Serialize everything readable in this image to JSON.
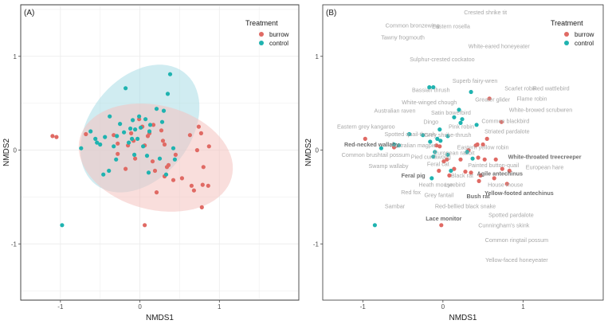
{
  "chart_data": [
    {
      "type": "scatter",
      "panel_tag": "(A)",
      "title": "",
      "xlabel": "NMDS1",
      "ylabel": "NMDS2",
      "xlim": [
        -1.5,
        2.0
      ],
      "ylim": [
        -1.6,
        1.55
      ],
      "xticks": [
        -1,
        0,
        1
      ],
      "yticks": [
        -1,
        0,
        1
      ],
      "xtick_labels": [
        "-1",
        "0",
        "1"
      ],
      "ytick_labels": [
        "-1",
        "0",
        "1"
      ],
      "grid": true,
      "legend": {
        "title": "Treatment",
        "position": "top-right",
        "entries": [
          "burrow",
          "control"
        ]
      },
      "colors": {
        "burrow": "#e06a64",
        "control": "#1fb3b0",
        "ellipse_burrow": "#f4c2c0",
        "ellipse_control": "#a9dde6",
        "grid": "#ebebeb",
        "frame": "#333333"
      },
      "ellipses": [
        {
          "series": "control",
          "center": [
            0.0,
            0.23
          ],
          "semi_major": 0.83,
          "semi_minor": 0.58,
          "angle_deg": 37
        },
        {
          "series": "burrow",
          "center": [
            0.2,
            -0.08
          ],
          "semi_major": 0.98,
          "semi_minor": 0.56,
          "angle_deg": -10
        }
      ],
      "series": [
        {
          "name": "burrow",
          "points": [
            [
              -1.1,
              0.15
            ],
            [
              -1.05,
              0.14
            ],
            [
              -0.68,
              0.17
            ],
            [
              -0.33,
              0.16
            ],
            [
              -0.28,
              0.07
            ],
            [
              -0.28,
              -0.04
            ],
            [
              -0.18,
              -0.2
            ],
            [
              -0.15,
              0.05
            ],
            [
              -0.11,
              0.18
            ],
            [
              -0.08,
              0.1
            ],
            [
              -0.06,
              -0.09
            ],
            [
              -0.01,
              0.33
            ],
            [
              0.03,
              0.25
            ],
            [
              0.06,
              0.05
            ],
            [
              0.1,
              0.15
            ],
            [
              0.12,
              0.18
            ],
            [
              0.16,
              -0.12
            ],
            [
              0.17,
              0.27
            ],
            [
              0.19,
              -0.22
            ],
            [
              0.21,
              -0.45
            ],
            [
              0.27,
              0.21
            ],
            [
              0.29,
              0.1
            ],
            [
              0.31,
              0.06
            ],
            [
              0.31,
              -0.28
            ],
            [
              0.34,
              -0.18
            ],
            [
              0.36,
              -0.16
            ],
            [
              0.42,
              -0.32
            ],
            [
              0.45,
              -0.05
            ],
            [
              0.53,
              -0.3
            ],
            [
              0.63,
              0.16
            ],
            [
              0.65,
              -0.38
            ],
            [
              0.68,
              -0.43
            ],
            [
              0.72,
              0.0
            ],
            [
              0.74,
              0.25
            ],
            [
              0.77,
              0.18
            ],
            [
              0.78,
              -0.61
            ],
            [
              0.79,
              -0.37
            ],
            [
              0.8,
              -0.18
            ],
            [
              0.87,
              0.04
            ],
            [
              0.86,
              -0.38
            ],
            [
              0.06,
              -0.8
            ]
          ]
        },
        {
          "name": "control",
          "points": [
            [
              -0.98,
              -0.8
            ],
            [
              -0.74,
              0.02
            ],
            [
              -0.62,
              0.2
            ],
            [
              -0.56,
              0.12
            ],
            [
              -0.54,
              0.08
            ],
            [
              -0.5,
              0.06
            ],
            [
              -0.46,
              -0.26
            ],
            [
              -0.44,
              0.14
            ],
            [
              -0.39,
              -0.22
            ],
            [
              -0.33,
              0.04
            ],
            [
              -0.3,
              -0.1
            ],
            [
              -0.29,
              0.15
            ],
            [
              -0.25,
              0.28
            ],
            [
              -0.18,
              0.66
            ],
            [
              -0.14,
              0.08
            ],
            [
              -0.12,
              0.23
            ],
            [
              -0.1,
              0.12
            ],
            [
              -0.09,
              0.32
            ],
            [
              -0.07,
              -0.05
            ],
            [
              -0.06,
              0.22
            ],
            [
              -0.03,
              0.12
            ],
            [
              -0.01,
              0.36
            ],
            [
              0.01,
              0.24
            ],
            [
              0.04,
              0.04
            ],
            [
              0.07,
              0.33
            ],
            [
              0.09,
              -0.06
            ],
            [
              0.11,
              -0.24
            ],
            [
              0.13,
              0.27
            ],
            [
              0.21,
              0.44
            ],
            [
              0.25,
              -0.09
            ],
            [
              0.28,
              0.3
            ],
            [
              0.3,
              0.42
            ],
            [
              0.33,
              -0.26
            ],
            [
              0.35,
              0.6
            ],
            [
              0.38,
              0.81
            ],
            [
              0.42,
              0.02
            ],
            [
              0.44,
              -0.1
            ],
            [
              -0.38,
              0.36
            ],
            [
              0.12,
              0.2
            ],
            [
              -0.2,
              0.19
            ]
          ]
        }
      ]
    },
    {
      "type": "scatter",
      "panel_tag": "(B)",
      "title": "",
      "xlabel": "NMDS1",
      "ylabel": "NMDS2",
      "xlim": [
        -1.5,
        2.0
      ],
      "ylim": [
        -1.6,
        1.55
      ],
      "xticks": [
        -1,
        0,
        1
      ],
      "yticks": [
        -1,
        0,
        1
      ],
      "xtick_labels": [
        "-1",
        "0",
        "1"
      ],
      "ytick_labels": [
        "-1",
        "0",
        "1"
      ],
      "grid": false,
      "legend": {
        "title": "Treatment",
        "position": "top-right",
        "entries": [
          "burrow",
          "control"
        ]
      },
      "colors": {
        "burrow": "#e06a64",
        "control": "#1fb3b0",
        "label": "#a8a8a8",
        "label_bold": "#6e6e6e",
        "leader": "#bdbdbd",
        "frame": "#333333"
      },
      "series": [
        {
          "name": "burrow",
          "points": [
            [
              -0.97,
              0.12
            ],
            [
              -0.61,
              0.03
            ],
            [
              -0.08,
              0.05
            ],
            [
              -0.04,
              0.04
            ],
            [
              0.01,
              -0.12
            ],
            [
              -0.05,
              -0.22
            ],
            [
              0.05,
              -0.1
            ],
            [
              0.08,
              -0.27
            ],
            [
              0.14,
              -0.2
            ],
            [
              0.22,
              -0.1
            ],
            [
              0.28,
              -0.23
            ],
            [
              0.32,
              0.0
            ],
            [
              0.35,
              -0.24
            ],
            [
              0.41,
              0.05
            ],
            [
              0.43,
              0.06
            ],
            [
              0.44,
              -0.08
            ],
            [
              0.45,
              -0.33
            ],
            [
              0.47,
              -0.27
            ],
            [
              0.5,
              0.06
            ],
            [
              0.52,
              -0.1
            ],
            [
              0.58,
              0.55
            ],
            [
              0.64,
              -0.3
            ],
            [
              0.66,
              -0.1
            ],
            [
              0.73,
              0.3
            ],
            [
              0.74,
              -0.2
            ],
            [
              0.8,
              -0.36
            ],
            [
              0.83,
              -0.22
            ],
            [
              0.55,
              0.12
            ],
            [
              -0.02,
              -0.8
            ]
          ]
        },
        {
          "name": "control",
          "points": [
            [
              -0.85,
              -0.8
            ],
            [
              -0.77,
              0.02
            ],
            [
              -0.61,
              0.06
            ],
            [
              -0.55,
              0.05
            ],
            [
              -0.42,
              0.17
            ],
            [
              -0.25,
              0.16
            ],
            [
              -0.16,
              0.09
            ],
            [
              -0.17,
              0.67
            ],
            [
              -0.12,
              0.67
            ],
            [
              -0.12,
              -0.07
            ],
            [
              -0.1,
              -0.02
            ],
            [
              -0.04,
              0.22
            ],
            [
              -0.03,
              0.1
            ],
            [
              0.06,
              0.15
            ],
            [
              0.06,
              -0.05
            ],
            [
              0.1,
              -0.22
            ],
            [
              0.2,
              0.43
            ],
            [
              0.22,
              0.29
            ],
            [
              0.24,
              0.33
            ],
            [
              0.3,
              -0.02
            ],
            [
              0.35,
              0.62
            ],
            [
              0.37,
              -0.09
            ],
            [
              0.42,
              0.27
            ],
            [
              -0.07,
              0.12
            ],
            [
              -0.14,
              -0.3
            ],
            [
              0.14,
              0.35
            ]
          ]
        }
      ],
      "species_labels": [
        {
          "text": "Crested shrike tit",
          "at": [
            0.53,
            1.47
          ],
          "bold": false
        },
        {
          "text": "Common bronzewing",
          "at": [
            -0.38,
            1.33
          ],
          "bold": false
        },
        {
          "text": "Eastern rosella",
          "at": [
            0.1,
            1.32
          ],
          "bold": false
        },
        {
          "text": "Tawny frogmouth",
          "at": [
            -0.5,
            1.2
          ],
          "bold": false
        },
        {
          "text": "White-eared honeyeater",
          "at": [
            0.7,
            1.11
          ],
          "bold": false
        },
        {
          "text": "Sulphur-crested cockatoo",
          "at": [
            -0.01,
            0.97
          ],
          "bold": false
        },
        {
          "text": "Superb fairy-wren",
          "at": [
            0.4,
            0.74
          ],
          "bold": false
        },
        {
          "text": "Bassian thrush",
          "at": [
            -0.15,
            0.64
          ],
          "bold": false
        },
        {
          "text": "Scarlet robin",
          "at": [
            0.97,
            0.66
          ],
          "bold": false
        },
        {
          "text": "Red wattlebird",
          "at": [
            1.35,
            0.66
          ],
          "bold": false
        },
        {
          "text": "Flame robin",
          "at": [
            1.11,
            0.55
          ],
          "bold": false
        },
        {
          "text": "Greater glider",
          "at": [
            0.62,
            0.54
          ],
          "bold": false
        },
        {
          "text": "White-winged chough",
          "at": [
            -0.17,
            0.51
          ],
          "bold": false
        },
        {
          "text": "White-browed scrubwren",
          "at": [
            1.22,
            0.43
          ],
          "bold": false
        },
        {
          "text": "Australian raven",
          "at": [
            -0.6,
            0.42
          ],
          "bold": false
        },
        {
          "text": "Satin bowerbird",
          "at": [
            0.1,
            0.4
          ],
          "bold": false
        },
        {
          "text": "Common blackbird",
          "at": [
            0.78,
            0.31
          ],
          "bold": false
        },
        {
          "text": "Dingo",
          "at": [
            -0.15,
            0.3
          ],
          "bold": false
        },
        {
          "text": "Pink robin",
          "at": [
            0.23,
            0.25
          ],
          "bold": false
        },
        {
          "text": "Eastern grey kangaroo",
          "at": [
            -0.96,
            0.25
          ],
          "bold": false
        },
        {
          "text": "Striated pardalote",
          "at": [
            0.8,
            0.2
          ],
          "bold": false
        },
        {
          "text": "Spotted quail-thrush",
          "at": [
            -0.41,
            0.17
          ],
          "bold": false
        },
        {
          "text": "Grey shrike-thrush",
          "at": [
            0.06,
            0.16
          ],
          "bold": false
        },
        {
          "text": "Red-necked wallaby",
          "at": [
            -0.89,
            0.06
          ],
          "bold": true
        },
        {
          "text": "Australian magpie",
          "at": [
            -0.37,
            0.05
          ],
          "bold": false
        },
        {
          "text": "Eastern yellow robin",
          "at": [
            0.5,
            0.03
          ],
          "bold": false
        },
        {
          "text": "White-throated treecreeper",
          "at": [
            1.27,
            -0.07
          ],
          "bold": true
        },
        {
          "text": "Common brushtail possum",
          "at": [
            -0.84,
            -0.05
          ],
          "bold": false
        },
        {
          "text": "Pied currawong",
          "at": [
            -0.15,
            -0.07
          ],
          "bold": false
        },
        {
          "text": "European rabbit",
          "at": [
            0.14,
            -0.03
          ],
          "bold": false
        },
        {
          "text": "Painted button-quail",
          "at": [
            0.63,
            -0.16
          ],
          "bold": false
        },
        {
          "text": "European hare",
          "at": [
            1.27,
            -0.18
          ],
          "bold": false
        },
        {
          "text": "Swamp wallaby",
          "at": [
            -0.68,
            -0.17
          ],
          "bold": false
        },
        {
          "text": "Feral cat",
          "at": [
            -0.06,
            -0.15
          ],
          "bold": false
        },
        {
          "text": "Agile antechinus",
          "at": [
            0.71,
            -0.25
          ],
          "bold": true
        },
        {
          "text": "Feral pig",
          "at": [
            -0.37,
            -0.27
          ],
          "bold": true
        },
        {
          "text": "Black rat",
          "at": [
            0.24,
            -0.27
          ],
          "bold": false
        },
        {
          "text": "House mouse",
          "at": [
            0.78,
            -0.37
          ],
          "bold": false
        },
        {
          "text": "Heath mouse",
          "at": [
            -0.09,
            -0.37
          ],
          "bold": false
        },
        {
          "text": "Lyrebird",
          "at": [
            0.15,
            -0.37
          ],
          "bold": false
        },
        {
          "text": "Red fox",
          "at": [
            -0.4,
            -0.45
          ],
          "bold": false
        },
        {
          "text": "Grey fantail",
          "at": [
            -0.05,
            -0.48
          ],
          "bold": false
        },
        {
          "text": "Bush rat",
          "at": [
            0.44,
            -0.49
          ],
          "bold": true
        },
        {
          "text": "Yellow-footed antechinus",
          "at": [
            0.95,
            -0.46
          ],
          "bold": true
        },
        {
          "text": "Red-bellied black snake",
          "at": [
            0.28,
            -0.6
          ],
          "bold": false
        },
        {
          "text": "Sambar",
          "at": [
            -0.6,
            -0.6
          ],
          "bold": false
        },
        {
          "text": "Spotted pardalote",
          "at": [
            0.85,
            -0.69
          ],
          "bold": false
        },
        {
          "text": "Lace monitor",
          "at": [
            0.01,
            -0.73
          ],
          "bold": true
        },
        {
          "text": "Cunningham's skink",
          "at": [
            0.76,
            -0.8
          ],
          "bold": false
        },
        {
          "text": "Common ringtail possum",
          "at": [
            0.92,
            -0.96
          ],
          "bold": false
        },
        {
          "text": "Yellow-faced honeyeater",
          "at": [
            0.92,
            -1.17
          ],
          "bold": false
        }
      ]
    }
  ]
}
